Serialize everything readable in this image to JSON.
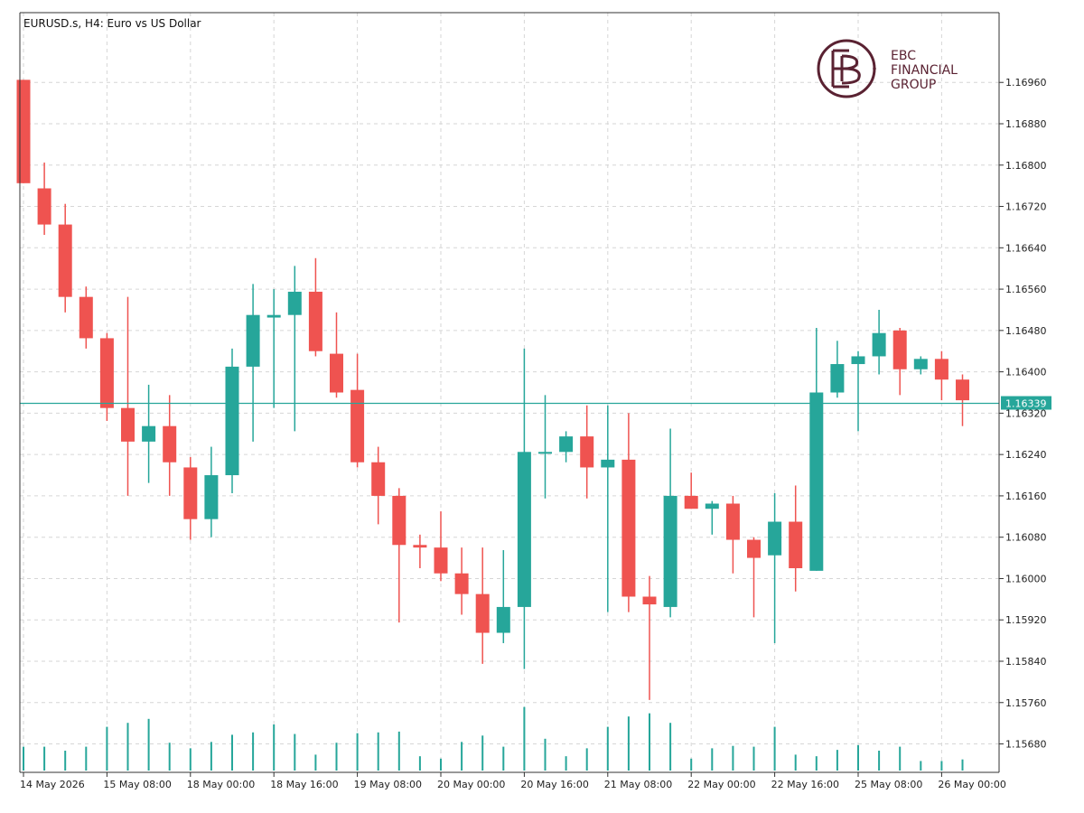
{
  "chart_data": {
    "type": "candlestick",
    "title": "EURUSD.s, H4:  Euro vs US Dollar",
    "current_price_label": "1.16339",
    "current_price": 1.16339,
    "ylim": [
      1.15625,
      1.17095
    ],
    "yticks": [
      "1.16960",
      "1.16880",
      "1.16800",
      "1.16720",
      "1.16640",
      "1.16560",
      "1.16480",
      "1.16400",
      "1.16320",
      "1.16240",
      "1.16160",
      "1.16080",
      "1.16000",
      "1.15920",
      "1.15840",
      "1.15760",
      "1.15680"
    ],
    "xticks": [
      {
        "label": "14 May 2026",
        "index": 0
      },
      {
        "label": "15 May 08:00",
        "index": 4
      },
      {
        "label": "18 May 00:00",
        "index": 8
      },
      {
        "label": "18 May 16:00",
        "index": 12
      },
      {
        "label": "19 May 08:00",
        "index": 16
      },
      {
        "label": "20 May 00:00",
        "index": 20
      },
      {
        "label": "20 May 16:00",
        "index": 24
      },
      {
        "label": "21 May 08:00",
        "index": 28
      },
      {
        "label": "22 May 00:00",
        "index": 32
      },
      {
        "label": "22 May 16:00",
        "index": 36
      },
      {
        "label": "25 May 08:00",
        "index": 40
      },
      {
        "label": "26 May 00:00",
        "index": 44
      }
    ],
    "up_color": "#26a69a",
    "down_color": "#ef5350",
    "candles": [
      {
        "o": 1.16965,
        "h": 1.16965,
        "l": 1.16765,
        "c": 1.16765,
        "v": 0.3
      },
      {
        "o": 1.16755,
        "h": 1.16805,
        "l": 1.16665,
        "c": 1.16685,
        "v": 0.3
      },
      {
        "o": 1.16685,
        "h": 1.16725,
        "l": 1.16515,
        "c": 1.16545,
        "v": 0.25
      },
      {
        "o": 1.16545,
        "h": 1.16565,
        "l": 1.16445,
        "c": 1.16465,
        "v": 0.3
      },
      {
        "o": 1.16465,
        "h": 1.16475,
        "l": 1.16305,
        "c": 1.1633,
        "v": 0.55
      },
      {
        "o": 1.1633,
        "h": 1.16545,
        "l": 1.1616,
        "c": 1.16265,
        "v": 0.6
      },
      {
        "o": 1.16265,
        "h": 1.16375,
        "l": 1.16185,
        "c": 1.16295,
        "v": 0.65
      },
      {
        "o": 1.16295,
        "h": 1.16355,
        "l": 1.1616,
        "c": 1.16225,
        "v": 0.35
      },
      {
        "o": 1.16215,
        "h": 1.16235,
        "l": 1.16075,
        "c": 1.16115,
        "v": 0.28
      },
      {
        "o": 1.16115,
        "h": 1.16255,
        "l": 1.1608,
        "c": 1.162,
        "v": 0.36
      },
      {
        "o": 1.162,
        "h": 1.16445,
        "l": 1.16165,
        "c": 1.1641,
        "v": 0.45
      },
      {
        "o": 1.1641,
        "h": 1.1657,
        "l": 1.16265,
        "c": 1.1651,
        "v": 0.48
      },
      {
        "o": 1.16505,
        "h": 1.1656,
        "l": 1.1633,
        "c": 1.1651,
        "v": 0.58
      },
      {
        "o": 1.1651,
        "h": 1.16605,
        "l": 1.16285,
        "c": 1.16555,
        "v": 0.46
      },
      {
        "o": 1.16555,
        "h": 1.1662,
        "l": 1.1643,
        "c": 1.1644,
        "v": 0.2
      },
      {
        "o": 1.16435,
        "h": 1.16515,
        "l": 1.1635,
        "c": 1.1636,
        "v": 0.35
      },
      {
        "o": 1.16365,
        "h": 1.16435,
        "l": 1.16215,
        "c": 1.16225,
        "v": 0.47
      },
      {
        "o": 1.16225,
        "h": 1.16255,
        "l": 1.16105,
        "c": 1.1616,
        "v": 0.48
      },
      {
        "o": 1.1616,
        "h": 1.16175,
        "l": 1.15915,
        "c": 1.16065,
        "v": 0.49
      },
      {
        "o": 1.16065,
        "h": 1.16085,
        "l": 1.1602,
        "c": 1.1606,
        "v": 0.18
      },
      {
        "o": 1.1606,
        "h": 1.1613,
        "l": 1.15995,
        "c": 1.1601,
        "v": 0.15
      },
      {
        "o": 1.1601,
        "h": 1.1606,
        "l": 1.1593,
        "c": 1.1597,
        "v": 0.36
      },
      {
        "o": 1.1597,
        "h": 1.1606,
        "l": 1.15835,
        "c": 1.15895,
        "v": 0.44
      },
      {
        "o": 1.15895,
        "h": 1.16055,
        "l": 1.15875,
        "c": 1.15945,
        "v": 0.3
      },
      {
        "o": 1.15945,
        "h": 1.16445,
        "l": 1.15825,
        "c": 1.16245,
        "v": 0.8
      },
      {
        "o": 1.16245,
        "h": 1.16355,
        "l": 1.16155,
        "c": 1.16245,
        "v": 0.4
      },
      {
        "o": 1.16245,
        "h": 1.16285,
        "l": 1.16225,
        "c": 1.16275,
        "v": 0.18
      },
      {
        "o": 1.16275,
        "h": 1.16335,
        "l": 1.16155,
        "c": 1.16215,
        "v": 0.28
      },
      {
        "o": 1.16215,
        "h": 1.16335,
        "l": 1.15935,
        "c": 1.1623,
        "v": 0.55
      },
      {
        "o": 1.1623,
        "h": 1.1632,
        "l": 1.15935,
        "c": 1.15965,
        "v": 0.68
      },
      {
        "o": 1.15965,
        "h": 1.16005,
        "l": 1.15765,
        "c": 1.1595,
        "v": 0.72
      },
      {
        "o": 1.15945,
        "h": 1.1629,
        "l": 1.15925,
        "c": 1.1616,
        "v": 0.6
      },
      {
        "o": 1.1616,
        "h": 1.16205,
        "l": 1.16135,
        "c": 1.16135,
        "v": 0.15
      },
      {
        "o": 1.16135,
        "h": 1.1615,
        "l": 1.16085,
        "c": 1.16145,
        "v": 0.28
      },
      {
        "o": 1.16145,
        "h": 1.1616,
        "l": 1.1601,
        "c": 1.16075,
        "v": 0.31
      },
      {
        "o": 1.16075,
        "h": 1.1608,
        "l": 1.15925,
        "c": 1.1604,
        "v": 0.3
      },
      {
        "o": 1.16045,
        "h": 1.16165,
        "l": 1.15875,
        "c": 1.1611,
        "v": 0.55
      },
      {
        "o": 1.1611,
        "h": 1.1618,
        "l": 1.15975,
        "c": 1.1602,
        "v": 0.2
      },
      {
        "o": 1.16015,
        "h": 1.16485,
        "l": 1.16015,
        "c": 1.1636,
        "v": 0.18
      },
      {
        "o": 1.1636,
        "h": 1.1646,
        "l": 1.1635,
        "c": 1.16415,
        "v": 0.26
      },
      {
        "o": 1.16415,
        "h": 1.1644,
        "l": 1.16285,
        "c": 1.1643,
        "v": 0.32
      },
      {
        "o": 1.1643,
        "h": 1.1652,
        "l": 1.16395,
        "c": 1.16475,
        "v": 0.25
      },
      {
        "o": 1.1648,
        "h": 1.16485,
        "l": 1.16355,
        "c": 1.16405,
        "v": 0.3
      },
      {
        "o": 1.16405,
        "h": 1.1643,
        "l": 1.16395,
        "c": 1.16425,
        "v": 0.12
      },
      {
        "o": 1.16425,
        "h": 1.1644,
        "l": 1.16345,
        "c": 1.16385,
        "v": 0.12
      },
      {
        "o": 1.16385,
        "h": 1.16395,
        "l": 1.16295,
        "c": 1.16345,
        "v": 0.14
      }
    ]
  },
  "logo": {
    "line1": "EBC",
    "line2": "FINANCIAL",
    "line3": "GROUP"
  },
  "colors": {
    "grid": "#d6d6d6",
    "axis": "#333333",
    "price_line": "#26a69a",
    "volume": "#26a69a",
    "logo": "#5a2232"
  }
}
